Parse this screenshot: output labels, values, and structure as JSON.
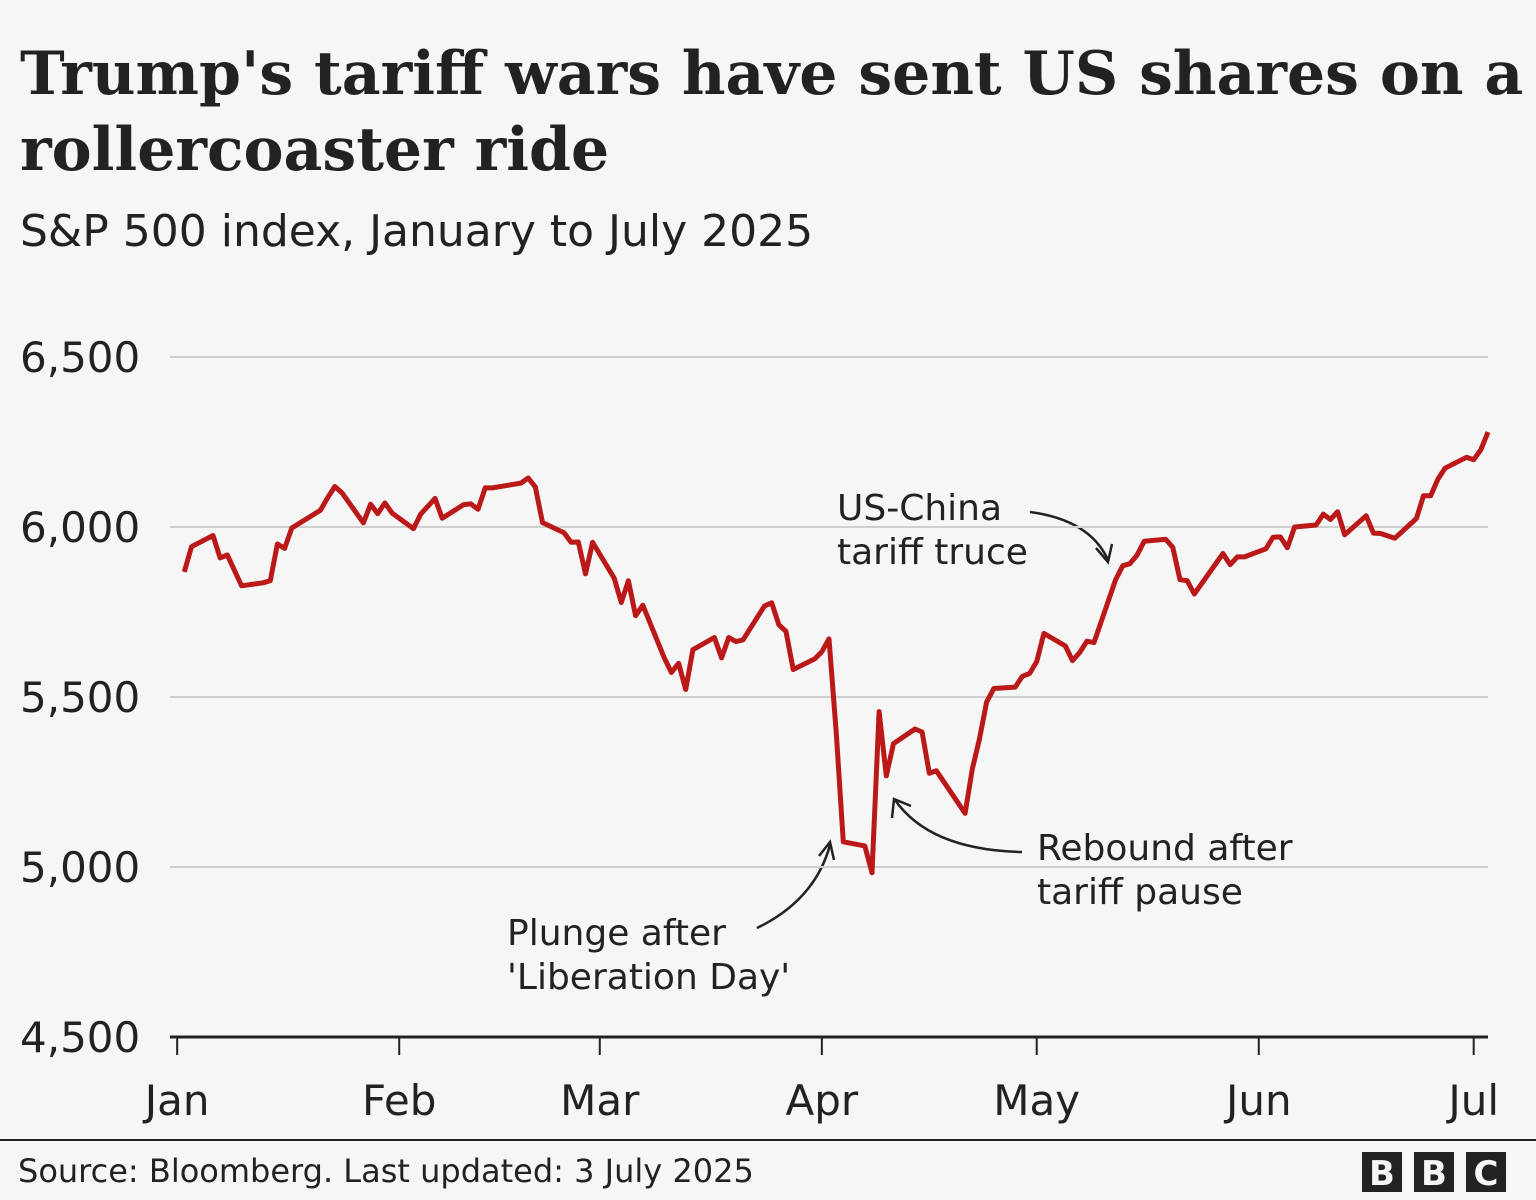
{
  "chart_data": {
    "type": "line",
    "title": [
      "Trump's tariff wars have sent US shares on a",
      "rollercoaster ride"
    ],
    "subtitle": "S&P 500 index, January to July 2025",
    "source": "Source: Bloomberg. Last updated: 3 July 2025",
    "logo": [
      "B",
      "B",
      "C"
    ],
    "annotations": [
      [
        "US-China",
        "tariff truce"
      ],
      [
        "Rebound after",
        "tariff pause"
      ],
      [
        "Plunge after",
        "'Liberation Day'"
      ]
    ],
    "xlim": [
      -1,
      183
    ],
    "xticks": [
      {
        "value": 0,
        "label": "Jan"
      },
      {
        "value": 31,
        "label": "Feb"
      },
      {
        "value": 59,
        "label": "Mar"
      },
      {
        "value": 90,
        "label": "Apr"
      },
      {
        "value": 120,
        "label": "May"
      },
      {
        "value": 151,
        "label": "Jun"
      },
      {
        "value": 181,
        "label": "Jul"
      }
    ],
    "ylim": [
      4500,
      6500
    ],
    "yticks": [
      {
        "value": 4500,
        "label": "4,500"
      },
      {
        "value": 5000,
        "label": "5,000"
      },
      {
        "value": 5500,
        "label": "5,500"
      },
      {
        "value": 6000,
        "label": "6,000"
      },
      {
        "value": 6500,
        "label": "6,500"
      }
    ],
    "grid": true,
    "series": [
      {
        "name": "S&P 500",
        "color": "#bb1919",
        "x": [
          1,
          2,
          5,
          6,
          7,
          9,
          12,
          13,
          14,
          15,
          16,
          20,
          21,
          22,
          23,
          26,
          27,
          28,
          29,
          30,
          33,
          34,
          35,
          36,
          37,
          40,
          41,
          42,
          43,
          44,
          48,
          49,
          50,
          51,
          54,
          55,
          56,
          57,
          58,
          61,
          62,
          63,
          64,
          65,
          68,
          69,
          70,
          71,
          72,
          75,
          76,
          77,
          78,
          79,
          82,
          83,
          84,
          85,
          86,
          89,
          90,
          91,
          92,
          93,
          96,
          97,
          98,
          99,
          100,
          103,
          104,
          105,
          106,
          110,
          111,
          112,
          113,
          114,
          117,
          118,
          119,
          120,
          121,
          124,
          125,
          126,
          127,
          128,
          131,
          132,
          133,
          134,
          135,
          138,
          139,
          140,
          141,
          142,
          146,
          147,
          148,
          149,
          152,
          153,
          154,
          155,
          156,
          159,
          160,
          161,
          162,
          163,
          166,
          167,
          168,
          170,
          173,
          174,
          175,
          176,
          177,
          180,
          181,
          182,
          183
        ],
        "values": [
          5868,
          5942,
          5975,
          5909,
          5918,
          5827,
          5836,
          5842,
          5950,
          5937,
          5997,
          6049,
          6086,
          6119,
          6101,
          6012,
          6067,
          6039,
          6071,
          6041,
          5995,
          6038,
          6061,
          6084,
          6026,
          6066,
          6068,
          6052,
          6115,
          6115,
          6129,
          6144,
          6118,
          6013,
          5983,
          5955,
          5956,
          5862,
          5955,
          5850,
          5778,
          5842,
          5739,
          5770,
          5615,
          5572,
          5599,
          5522,
          5639,
          5675,
          5615,
          5675,
          5663,
          5668,
          5768,
          5777,
          5712,
          5693,
          5581,
          5612,
          5633,
          5671,
          5397,
          5074,
          5062,
          4983,
          5457,
          5268,
          5363,
          5406,
          5397,
          5276,
          5283,
          5158,
          5288,
          5376,
          5485,
          5525,
          5529,
          5561,
          5569,
          5604,
          5687,
          5650,
          5607,
          5631,
          5664,
          5660,
          5844,
          5886,
          5892,
          5917,
          5958,
          5964,
          5940,
          5845,
          5842,
          5803,
          5922,
          5889,
          5912,
          5912,
          5936,
          5970,
          5971,
          5939,
          6000,
          6006,
          6038,
          6022,
          6045,
          5977,
          6033,
          5982,
          5981,
          5967,
          6025,
          6092,
          6092,
          6141,
          6173,
          6205,
          6198,
          6227,
          6279
        ]
      }
    ]
  }
}
